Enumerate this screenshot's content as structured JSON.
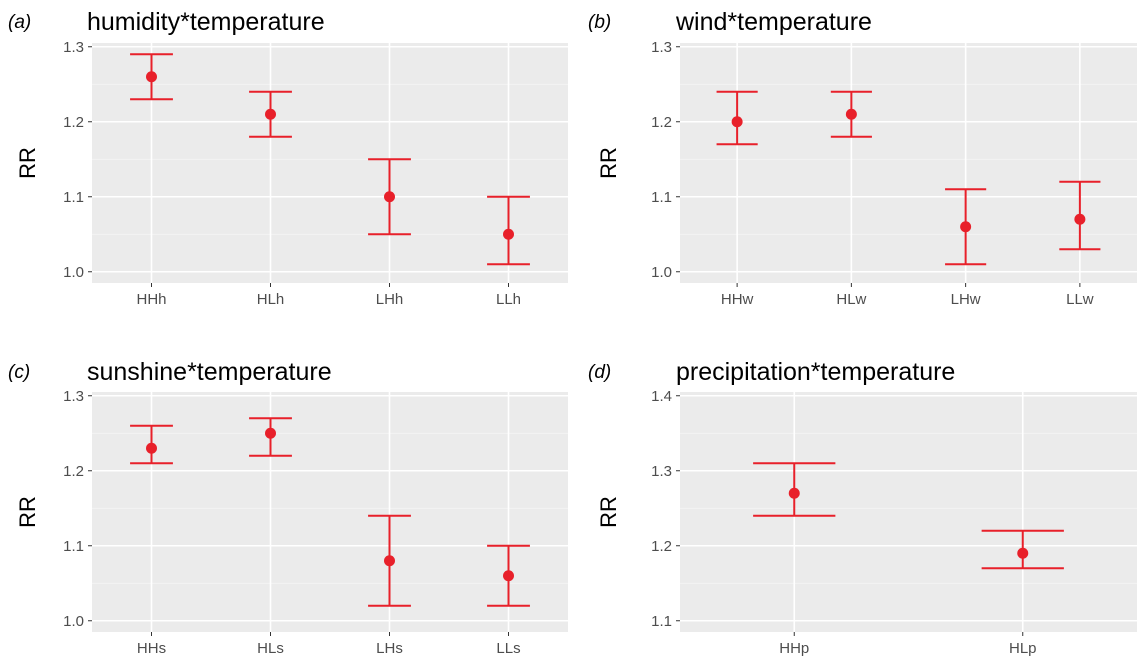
{
  "colors": {
    "panel_bg": "#ebebeb",
    "grid": "#ffffff",
    "point": "#e8202a",
    "tick_text": "#4d4d4d"
  },
  "chart_data": [
    {
      "type": "scatter",
      "panel_label": "(a)",
      "title": "humidity*temperature",
      "xlabel": "",
      "ylabel": "RR",
      "categories": [
        "HHh",
        "HLh",
        "LHh",
        "LLh"
      ],
      "values": [
        1.26,
        1.21,
        1.1,
        1.05
      ],
      "ci_lower": [
        1.23,
        1.18,
        1.05,
        1.01
      ],
      "ci_upper": [
        1.29,
        1.24,
        1.15,
        1.1
      ],
      "yticks": [
        "1.0",
        "1.1",
        "1.2",
        "1.3"
      ],
      "ylim": [
        0.985,
        1.305
      ],
      "grid": true
    },
    {
      "type": "scatter",
      "panel_label": "(b)",
      "title": "wind*temperature",
      "xlabel": "",
      "ylabel": "RR",
      "categories": [
        "HHw",
        "HLw",
        "LHw",
        "LLw"
      ],
      "values": [
        1.2,
        1.21,
        1.06,
        1.07
      ],
      "ci_lower": [
        1.17,
        1.18,
        1.01,
        1.03
      ],
      "ci_upper": [
        1.24,
        1.24,
        1.11,
        1.12
      ],
      "yticks": [
        "1.0",
        "1.1",
        "1.2",
        "1.3"
      ],
      "ylim": [
        0.985,
        1.305
      ],
      "grid": true
    },
    {
      "type": "scatter",
      "panel_label": "(c)",
      "title": "sunshine*temperature",
      "xlabel": "",
      "ylabel": "RR",
      "categories": [
        "HHs",
        "HLs",
        "LHs",
        "LLs"
      ],
      "values": [
        1.23,
        1.25,
        1.08,
        1.06
      ],
      "ci_lower": [
        1.21,
        1.22,
        1.02,
        1.02
      ],
      "ci_upper": [
        1.26,
        1.27,
        1.14,
        1.1
      ],
      "yticks": [
        "1.0",
        "1.1",
        "1.2",
        "1.3"
      ],
      "ylim": [
        0.985,
        1.305
      ],
      "grid": true
    },
    {
      "type": "scatter",
      "panel_label": "(d)",
      "title": "precipitation*temperature",
      "xlabel": "",
      "ylabel": "RR",
      "categories": [
        "HHp",
        "HLp"
      ],
      "values": [
        1.27,
        1.19
      ],
      "ci_lower": [
        1.24,
        1.17
      ],
      "ci_upper": [
        1.31,
        1.22
      ],
      "yticks": [
        "1.1",
        "1.2",
        "1.3",
        "1.4"
      ],
      "ylim": [
        1.085,
        1.405
      ],
      "grid": true
    }
  ]
}
